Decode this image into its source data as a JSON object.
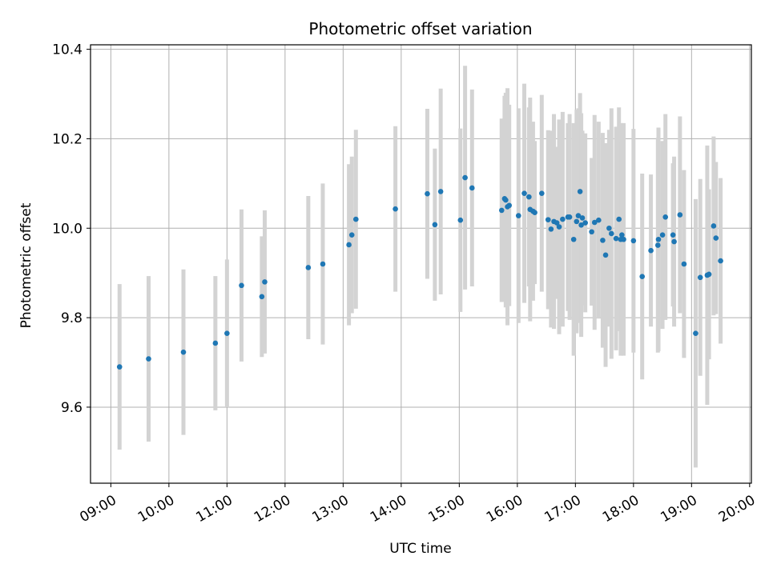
{
  "chart_data": {
    "type": "scatter",
    "title": "Photometric offset variation",
    "xlabel": "UTC time",
    "ylabel": "Photometric offset",
    "x_unit": "UTC time of day (hours)",
    "xlim": [
      8.65,
      20.03
    ],
    "ylim": [
      9.43,
      10.41
    ],
    "x_ticks": [
      "09:00",
      "10:00",
      "11:00",
      "12:00",
      "13:00",
      "14:00",
      "15:00",
      "16:00",
      "17:00",
      "18:00",
      "19:00",
      "20:00"
    ],
    "y_ticks": [
      "9.6",
      "9.8",
      "10.0",
      "10.2",
      "10.4"
    ],
    "grid": true,
    "legend": false,
    "colors": {
      "points": "#1f77b4",
      "error_bars": "#d3d3d3",
      "grid": "#b0b0b0"
    },
    "series": [
      {
        "x": [
          9.15,
          9.65,
          10.25,
          10.8,
          11.0,
          11.25,
          11.6,
          11.65,
          12.4,
          12.65,
          13.1,
          13.15,
          13.22,
          13.9,
          14.45,
          14.58,
          14.68,
          15.02,
          15.1,
          15.22,
          15.73,
          15.78,
          15.8,
          15.83,
          15.86,
          16.02,
          16.12,
          16.2,
          16.22,
          16.27,
          16.3,
          16.42,
          16.53,
          16.58,
          16.63,
          16.68,
          16.72,
          16.78,
          16.87,
          16.9,
          16.97,
          17.02,
          17.05,
          17.08,
          17.1,
          17.12,
          17.17,
          17.28,
          17.33,
          17.4,
          17.47,
          17.52,
          17.58,
          17.62,
          17.7,
          17.75,
          17.78,
          17.8,
          17.83,
          18.0,
          18.15,
          18.3,
          18.42,
          18.43,
          18.5,
          18.55,
          18.68,
          18.7,
          18.8,
          18.87,
          19.07,
          19.15,
          19.27,
          19.3,
          19.38,
          19.42,
          19.5
        ],
        "y": [
          9.69,
          9.708,
          9.723,
          9.743,
          9.765,
          9.872,
          9.847,
          9.88,
          9.912,
          9.92,
          9.963,
          9.985,
          10.02,
          10.043,
          10.077,
          10.008,
          10.082,
          10.018,
          10.113,
          10.09,
          10.04,
          10.066,
          10.063,
          10.048,
          10.051,
          10.028,
          10.078,
          10.07,
          10.042,
          10.038,
          10.035,
          10.078,
          10.019,
          9.998,
          10.015,
          10.012,
          10.003,
          10.02,
          10.025,
          10.025,
          9.975,
          10.015,
          10.028,
          10.082,
          10.007,
          10.023,
          10.012,
          9.992,
          10.013,
          10.018,
          9.973,
          9.94,
          10.0,
          9.988,
          9.977,
          10.02,
          9.975,
          9.985,
          9.975,
          9.972,
          9.892,
          9.95,
          9.962,
          9.975,
          9.985,
          10.025,
          9.985,
          9.97,
          10.03,
          9.92,
          9.765,
          9.89,
          9.895,
          9.897,
          10.005,
          9.978,
          9.927
        ],
        "y_error": [
          0.185,
          0.185,
          0.185,
          0.15,
          0.165,
          0.17,
          0.135,
          0.16,
          0.16,
          0.18,
          0.18,
          0.175,
          0.2,
          0.185,
          0.19,
          0.17,
          0.23,
          0.205,
          0.25,
          0.22,
          0.205,
          0.23,
          0.24,
          0.265,
          0.225,
          0.24,
          0.245,
          0.2,
          0.25,
          0.2,
          0.16,
          0.22,
          0.2,
          0.22,
          0.24,
          0.17,
          0.24,
          0.24,
          0.21,
          0.23,
          0.26,
          0.25,
          0.24,
          0.22,
          0.25,
          0.195,
          0.2,
          0.165,
          0.24,
          0.22,
          0.24,
          0.25,
          0.22,
          0.28,
          0.25,
          0.25,
          0.26,
          0.21,
          0.26,
          0.25,
          0.23,
          0.17,
          0.24,
          0.25,
          0.21,
          0.23,
          0.16,
          0.19,
          0.22,
          0.21,
          0.3,
          0.22,
          0.29,
          0.19,
          0.2,
          0.17,
          0.185
        ]
      }
    ]
  }
}
